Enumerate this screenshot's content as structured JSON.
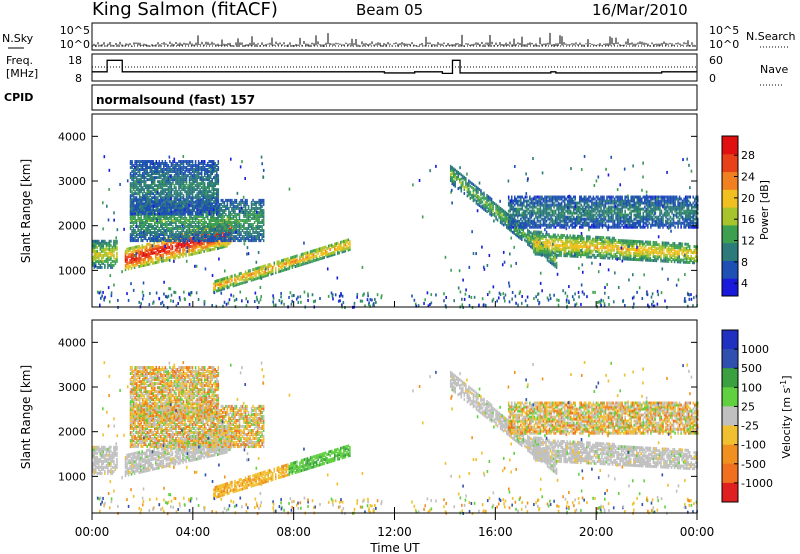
{
  "header": {
    "station": "King Salmon (fitACF)",
    "beam": "Beam 05",
    "date": "16/Mar/2010"
  },
  "panels": {
    "nsky_label": "N.Sky",
    "nsearch_label": "N.Search",
    "freq_label": "Freq.",
    "freq_unit": "[MHz]",
    "nave_label": "Nave",
    "cpid_label": "CPID",
    "cpid_value": "normalsound (fast) 157",
    "noise_ticks": [
      "10^5",
      "10^0"
    ],
    "freq_ticks": [
      "18",
      "8"
    ],
    "nave_ticks": [
      "60",
      "0"
    ]
  },
  "colorbars": {
    "power": {
      "title": "Power [dB]",
      "ticks": [
        "28",
        "24",
        "20",
        "16",
        "12",
        "8",
        "4"
      ]
    },
    "velocity": {
      "title": "Velocity [m s",
      "title_sup": "-1",
      "ticks": [
        "1000",
        "500",
        "100",
        "25",
        "-25",
        "-100",
        "-500",
        "-1000"
      ]
    }
  },
  "colors": {
    "power_scale": [
      "#1a1adc",
      "#1e4fb4",
      "#2d7a7a",
      "#3ca050",
      "#a8c42c",
      "#f0c020",
      "#f08020",
      "#e84018",
      "#e01010"
    ],
    "velocity_scale": [
      "#2030c0",
      "#3050b0",
      "#3aa040",
      "#60d040",
      "#c0c0c0",
      "#f0c030",
      "#f09020",
      "#f07020",
      "#e02020"
    ]
  },
  "chart_data": {
    "type": "heatmap",
    "xlabel": "Time UT",
    "ylabel": "Slant Range [km]",
    "x_ticks": [
      "00:00",
      "04:00",
      "08:00",
      "12:00",
      "16:00",
      "20:00",
      "00:00"
    ],
    "xlim_hours": [
      0,
      24
    ],
    "y_ticks": [
      1000,
      2000,
      3000,
      4000
    ],
    "ylim_km": [
      180,
      4500
    ],
    "noise_decades": [
      0,
      5
    ],
    "freq_range_mhz": [
      8,
      18
    ],
    "nave_range": [
      0,
      60
    ],
    "frequency_steps": [
      [
        0,
        12
      ],
      [
        0.6,
        17
      ],
      [
        1.2,
        12
      ],
      [
        11.5,
        12
      ],
      [
        11.6,
        11.5
      ],
      [
        12.8,
        12
      ],
      [
        13.9,
        11.3
      ],
      [
        14.3,
        17
      ],
      [
        14.6,
        11.5
      ],
      [
        18.2,
        12
      ],
      [
        18.4,
        11.5
      ],
      [
        22.6,
        12
      ],
      [
        24,
        12
      ]
    ],
    "nave_level": 25,
    "scatter_features": [
      {
        "name": "patch-a",
        "t": [
          0,
          1.0
        ],
        "r": [
          1100,
          1700
        ],
        "power_db": 14,
        "velocity": "ground"
      },
      {
        "name": "band-main",
        "t": [
          1.3,
          5.5
        ],
        "r": [
          1050,
          1500
        ],
        "r_end": [
          1600,
          2200
        ],
        "power_db": 24,
        "velocity": "ground"
      },
      {
        "name": "band-upper",
        "t": [
          1.5,
          6.8
        ],
        "r": [
          1700,
          2600
        ],
        "power_db": 10,
        "velocity": "mixed"
      },
      {
        "name": "band-high",
        "t": [
          1.5,
          5.0
        ],
        "r": [
          2300,
          3500
        ],
        "power_db": 8,
        "velocity": "mixed"
      },
      {
        "name": "streak-low",
        "t": [
          4.8,
          10.2
        ],
        "r": [
          550,
          800
        ],
        "r_end": [
          1500,
          1750
        ],
        "power_db": 18,
        "velocity": "negative-to-positive"
      },
      {
        "name": "band-evening",
        "t": [
          14.2,
          18.4
        ],
        "r": [
          3000,
          3400
        ],
        "r_end": [
          1100,
          1400
        ],
        "power_db": 12,
        "velocity": "ground"
      },
      {
        "name": "band-night",
        "t": [
          17.5,
          24
        ],
        "r": [
          1400,
          1900
        ],
        "r_end": [
          1200,
          1600
        ],
        "power_db": 16,
        "velocity": "ground"
      },
      {
        "name": "band-night-upper",
        "t": [
          16.5,
          24
        ],
        "r": [
          2000,
          2700
        ],
        "power_db": 8,
        "velocity": "mixed"
      }
    ]
  }
}
